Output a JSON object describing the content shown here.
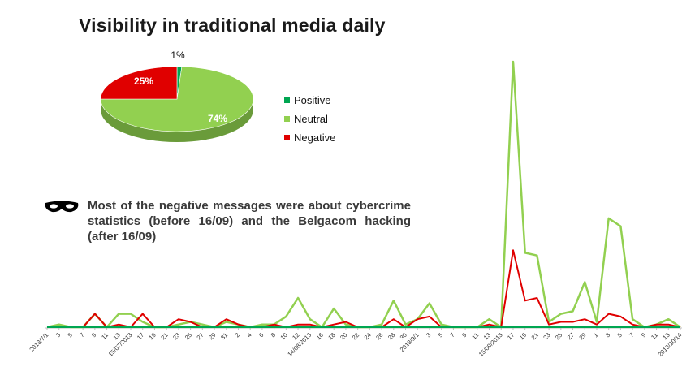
{
  "colors": {
    "positive": "#00a651",
    "neutral": "#92d050",
    "negative": "#e00000",
    "axis": "#bfbfbf",
    "text": "#222222"
  },
  "chart_data": [
    {
      "type": "pie",
      "title": "Visibility in traditional media daily",
      "labels": [
        "Positive",
        "Neutral",
        "Negative"
      ],
      "values": [
        1,
        74,
        25
      ],
      "value_labels": [
        "1%",
        "74%",
        "25%"
      ],
      "style": "3d",
      "legend_position": "right"
    },
    {
      "type": "line",
      "legend": "none",
      "grid": false,
      "ylim": [
        0,
        100
      ],
      "x": [
        "2013/7/1",
        "3",
        "5",
        "7",
        "9",
        "11",
        "13",
        "15/07/2013",
        "17",
        "19",
        "21",
        "23",
        "25",
        "27",
        "29",
        "31",
        "2",
        "4",
        "6",
        "8",
        "10",
        "12",
        "14/08/2013",
        "16",
        "18",
        "20",
        "22",
        "24",
        "26",
        "28",
        "30",
        "2013/9/1",
        "3",
        "5",
        "7",
        "9",
        "11",
        "13",
        "15/09/2013",
        "17",
        "19",
        "21",
        "23",
        "25",
        "27",
        "29",
        "1",
        "3",
        "5",
        "7",
        "9",
        "11",
        "13",
        "2013/10/14"
      ],
      "series": [
        {
          "name": "Positive",
          "values": [
            0,
            0,
            0,
            0,
            0,
            0,
            0,
            0,
            0,
            0,
            0,
            0,
            0,
            0,
            0,
            0,
            0,
            0,
            0,
            0,
            0,
            0,
            0,
            0,
            0,
            0,
            0,
            0,
            0,
            0,
            0,
            0,
            0,
            0,
            0,
            0,
            0,
            0,
            0,
            0,
            0,
            0,
            0,
            0,
            0,
            0,
            0,
            0,
            0,
            0,
            0,
            0,
            0,
            0
          ]
        },
        {
          "name": "Neutral",
          "values": [
            0,
            1,
            0,
            0,
            5,
            0,
            5,
            5,
            2,
            0,
            0,
            1,
            2,
            1,
            0,
            2,
            1,
            0,
            1,
            1,
            4,
            11,
            3,
            0,
            7,
            1,
            0,
            0,
            1,
            10,
            1,
            3,
            9,
            1,
            0,
            0,
            0,
            3,
            0,
            100,
            28,
            27,
            2,
            5,
            6,
            17,
            2,
            41,
            38,
            3,
            0,
            1,
            3,
            0
          ]
        },
        {
          "name": "Negative",
          "values": [
            0,
            0,
            0,
            0,
            5,
            0,
            1,
            0,
            5,
            0,
            0,
            3,
            2,
            0,
            0,
            3,
            1,
            0,
            0,
            1,
            0,
            1,
            1,
            0,
            1,
            2,
            0,
            0,
            0,
            3,
            0,
            3,
            4,
            0,
            0,
            0,
            0,
            1,
            0,
            29,
            10,
            11,
            1,
            2,
            2,
            3,
            1,
            5,
            4,
            1,
            0,
            1,
            1,
            0
          ]
        }
      ]
    }
  ],
  "annotation": {
    "text": "Most of the negative messages were about cybercrime statistics  (before 16/09) and the Belgacom hacking (after 16/09)",
    "icon": "mask-icon"
  }
}
